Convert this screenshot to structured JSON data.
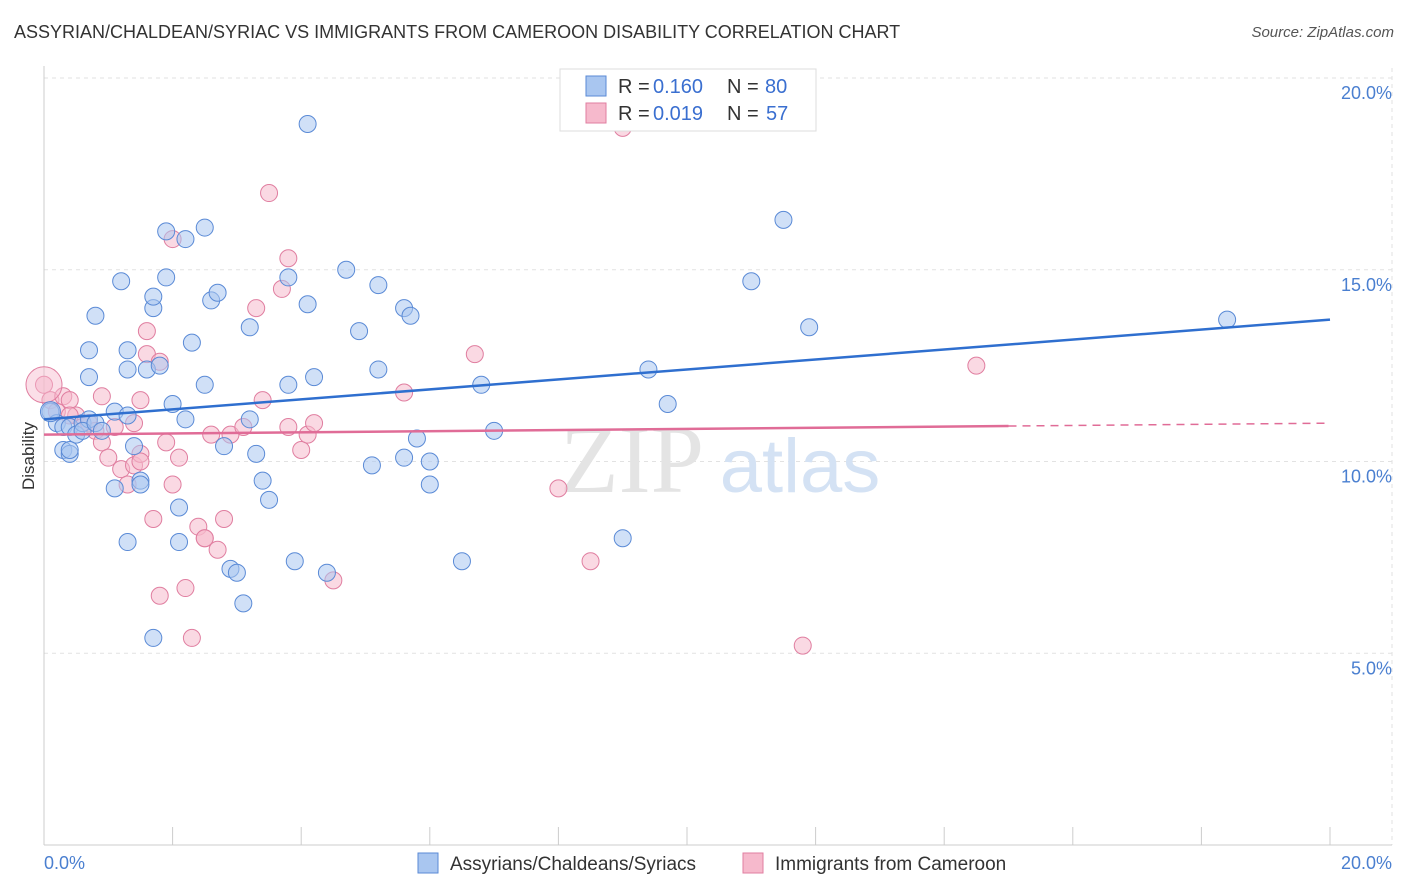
{
  "title": "ASSYRIAN/CHALDEAN/SYRIAC VS IMMIGRANTS FROM CAMEROON DISABILITY CORRELATION CHART",
  "source": "Source: ZipAtlas.com",
  "watermark": {
    "zip": "ZIP",
    "atlas": "atlas"
  },
  "colors": {
    "blue_fill": "#a9c6f0",
    "blue_stroke": "#5a8ad6",
    "blue_line": "#2f6fcf",
    "pink_fill": "#f6b9cc",
    "pink_stroke": "#e07ea0",
    "pink_line": "#e06c97",
    "grid": "#e2e2e2",
    "tick_label": "#4a7fd0"
  },
  "legend_top": {
    "items": [
      {
        "r_label": "R =",
        "r_value": "0.160",
        "n_label": "N =",
        "n_value": "80"
      },
      {
        "r_label": "R =",
        "r_value": "0.019",
        "n_label": "N =",
        "n_value": "57"
      }
    ]
  },
  "legend_bottom": {
    "items": [
      {
        "label": "Assyrians/Chaldeans/Syriacs"
      },
      {
        "label": "Immigrants from Cameroon"
      }
    ]
  },
  "chart_data": {
    "type": "scatter",
    "title": "ASSYRIAN/CHALDEAN/SYRIAC VS IMMIGRANTS FROM CAMEROON DISABILITY CORRELATION CHART",
    "xlabel": "",
    "ylabel": "Disability",
    "xlim": [
      0,
      20
    ],
    "ylim": [
      0,
      20
    ],
    "x_tick_labels": [
      "0.0%",
      "20.0%"
    ],
    "y_ticks": [
      5,
      10,
      15,
      20
    ],
    "y_tick_labels": [
      "5.0%",
      "10.0%",
      "15.0%",
      "20.0%"
    ],
    "grid": true,
    "legend_position": "top-center",
    "series": [
      {
        "name": "Assyrians/Chaldeans/Syriacs",
        "color": "#a9c6f0",
        "r": 0.16,
        "n": 80,
        "trend": {
          "x": [
            0,
            20
          ],
          "y": [
            11.1,
            13.7
          ],
          "dashed_from": null
        },
        "points": [
          [
            0.1,
            11.3
          ],
          [
            0.2,
            11.0
          ],
          [
            0.3,
            10.9
          ],
          [
            0.4,
            10.9
          ],
          [
            0.5,
            10.7
          ],
          [
            0.6,
            11.0
          ],
          [
            0.7,
            11.1
          ],
          [
            0.3,
            10.3
          ],
          [
            0.4,
            10.2
          ],
          [
            0.6,
            10.8
          ],
          [
            0.8,
            11.0
          ],
          [
            0.9,
            10.8
          ],
          [
            1.1,
            11.3
          ],
          [
            1.3,
            11.2
          ],
          [
            0.7,
            12.2
          ],
          [
            0.7,
            12.9
          ],
          [
            0.8,
            13.8
          ],
          [
            1.2,
            14.7
          ],
          [
            1.3,
            12.9
          ],
          [
            1.3,
            12.4
          ],
          [
            1.6,
            12.4
          ],
          [
            1.7,
            14.0
          ],
          [
            1.7,
            14.3
          ],
          [
            1.8,
            12.5
          ],
          [
            1.9,
            16.0
          ],
          [
            1.9,
            14.8
          ],
          [
            2.0,
            11.5
          ],
          [
            2.2,
            11.1
          ],
          [
            2.2,
            15.8
          ],
          [
            2.3,
            13.1
          ],
          [
            2.5,
            16.1
          ],
          [
            2.5,
            12.0
          ],
          [
            2.6,
            14.2
          ],
          [
            2.7,
            14.4
          ],
          [
            2.8,
            10.4
          ],
          [
            2.9,
            7.2
          ],
          [
            3.0,
            7.1
          ],
          [
            3.1,
            6.3
          ],
          [
            3.2,
            13.5
          ],
          [
            3.2,
            11.1
          ],
          [
            3.3,
            10.2
          ],
          [
            3.4,
            9.5
          ],
          [
            3.5,
            9.0
          ],
          [
            3.8,
            12.0
          ],
          [
            3.8,
            14.8
          ],
          [
            4.1,
            14.1
          ],
          [
            4.1,
            18.8
          ],
          [
            4.2,
            12.2
          ],
          [
            4.4,
            7.1
          ],
          [
            4.7,
            15.0
          ],
          [
            4.9,
            13.4
          ],
          [
            5.1,
            9.9
          ],
          [
            5.2,
            12.4
          ],
          [
            5.2,
            14.6
          ],
          [
            5.6,
            10.1
          ],
          [
            5.6,
            14.0
          ],
          [
            5.7,
            13.8
          ],
          [
            5.8,
            10.6
          ],
          [
            6.0,
            9.4
          ],
          [
            6.0,
            10.0
          ],
          [
            6.5,
            7.4
          ],
          [
            6.8,
            12.0
          ],
          [
            7.0,
            10.8
          ],
          [
            2.1,
            8.8
          ],
          [
            2.1,
            7.9
          ],
          [
            1.3,
            7.9
          ],
          [
            1.5,
            9.5
          ],
          [
            1.4,
            10.4
          ],
          [
            1.7,
            5.4
          ],
          [
            1.1,
            9.3
          ],
          [
            3.9,
            7.4
          ],
          [
            9.0,
            8.0
          ],
          [
            9.4,
            12.4
          ],
          [
            9.7,
            11.5
          ],
          [
            11.0,
            14.7
          ],
          [
            11.5,
            16.3
          ],
          [
            11.9,
            13.5
          ],
          [
            18.4,
            13.7
          ],
          [
            1.5,
            9.4
          ],
          [
            0.4,
            10.3
          ]
        ]
      },
      {
        "name": "Immigrants from Cameroon",
        "color": "#f6b9cc",
        "r": 0.019,
        "n": 57,
        "trend": {
          "x": [
            0,
            20
          ],
          "y": [
            10.7,
            11.0
          ],
          "dashed_from": 15.0
        },
        "points": [
          [
            0.0,
            12.0
          ],
          [
            0.1,
            11.6
          ],
          [
            0.2,
            11.3
          ],
          [
            0.3,
            11.7
          ],
          [
            0.4,
            11.6
          ],
          [
            0.5,
            11.2
          ],
          [
            0.6,
            10.9
          ],
          [
            0.7,
            11.0
          ],
          [
            0.8,
            10.8
          ],
          [
            0.9,
            11.7
          ],
          [
            0.9,
            10.5
          ],
          [
            1.0,
            10.1
          ],
          [
            1.1,
            10.9
          ],
          [
            1.2,
            9.8
          ],
          [
            1.3,
            9.4
          ],
          [
            1.4,
            9.9
          ],
          [
            1.4,
            11.0
          ],
          [
            1.5,
            11.6
          ],
          [
            1.5,
            10.2
          ],
          [
            1.6,
            12.8
          ],
          [
            1.6,
            13.4
          ],
          [
            1.7,
            8.5
          ],
          [
            1.8,
            12.6
          ],
          [
            1.8,
            6.5
          ],
          [
            1.9,
            10.5
          ],
          [
            2.0,
            15.8
          ],
          [
            2.0,
            9.4
          ],
          [
            2.1,
            10.1
          ],
          [
            2.2,
            6.7
          ],
          [
            2.3,
            5.4
          ],
          [
            2.4,
            8.3
          ],
          [
            2.5,
            8.0
          ],
          [
            2.6,
            10.7
          ],
          [
            2.7,
            7.7
          ],
          [
            2.8,
            8.5
          ],
          [
            2.9,
            10.7
          ],
          [
            3.1,
            10.9
          ],
          [
            3.3,
            14.0
          ],
          [
            3.4,
            11.6
          ],
          [
            3.5,
            17.0
          ],
          [
            3.7,
            14.5
          ],
          [
            3.8,
            15.3
          ],
          [
            3.8,
            10.9
          ],
          [
            4.0,
            10.3
          ],
          [
            4.1,
            10.7
          ],
          [
            4.2,
            11.0
          ],
          [
            4.5,
            6.9
          ],
          [
            5.6,
            11.8
          ],
          [
            6.7,
            12.8
          ],
          [
            8.0,
            9.3
          ],
          [
            8.5,
            7.4
          ],
          [
            9.0,
            18.7
          ],
          [
            11.8,
            5.2
          ],
          [
            14.5,
            12.5
          ],
          [
            2.5,
            8.0
          ],
          [
            1.5,
            10.0
          ],
          [
            0.4,
            11.2
          ]
        ]
      }
    ]
  }
}
